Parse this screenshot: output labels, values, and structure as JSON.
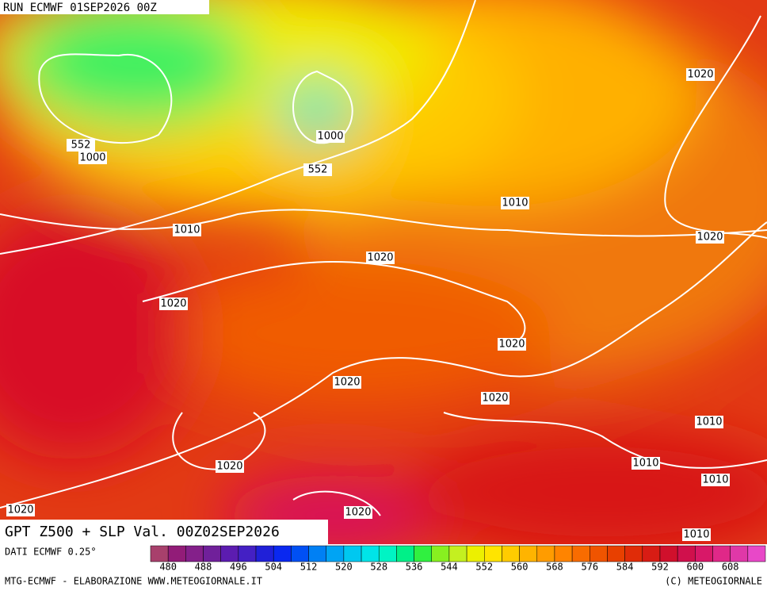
{
  "header": {
    "run": "RUN ECMWF 01SEP2026 00Z"
  },
  "title": "GPT Z500 + SLP Val. 00Z02SEP2026",
  "source": "DATI ECMWF 0.25°",
  "legend": {
    "colors": [
      "#a8406c",
      "#921c78",
      "#84208a",
      "#70209a",
      "#5c1cb0",
      "#4420c4",
      "#2020d8",
      "#0a28f0",
      "#0050f4",
      "#0080f4",
      "#00a4f4",
      "#00c8f0",
      "#00e4e8",
      "#00f4c4",
      "#00f088",
      "#30f040",
      "#88f020",
      "#c4f020",
      "#ecf000",
      "#ffe400",
      "#ffcc00",
      "#ffb400",
      "#ff9c00",
      "#ff8400",
      "#f86c00",
      "#f05400",
      "#e84000",
      "#e02c08",
      "#d81c14",
      "#d0102c",
      "#d0104c",
      "#d81868",
      "#e02888",
      "#e038a8",
      "#e848c8"
    ],
    "labels": [
      "480",
      "488",
      "496",
      "504",
      "512",
      "520",
      "528",
      "536",
      "544",
      "552",
      "560",
      "568",
      "576",
      "584",
      "592",
      "600",
      "608"
    ]
  },
  "footer": {
    "left": "MTG-ECMWF - ELABORAZIONE WWW.METEOGIORNALE.IT",
    "right": "(C) METEOGIORNALE"
  },
  "contour_labels": [
    "552",
    "1000",
    "1000",
    "552",
    "1010",
    "1010",
    "1020",
    "1020",
    "1020",
    "1020",
    "1020",
    "1020",
    "1020",
    "1020",
    "1020",
    "1020",
    "1010",
    "1010",
    "1010",
    "1010"
  ]
}
